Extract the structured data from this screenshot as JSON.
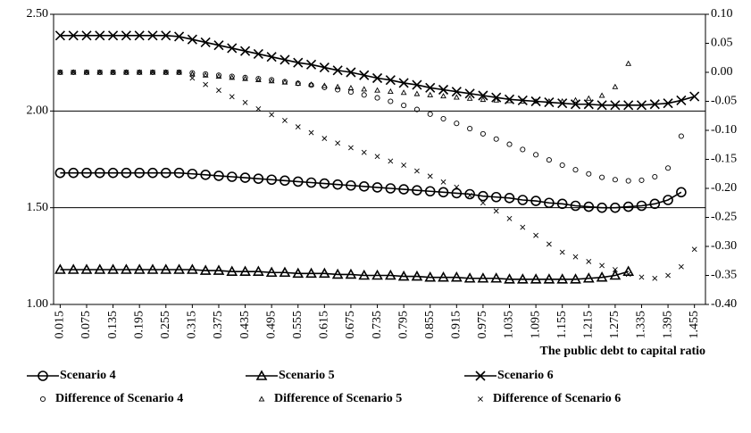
{
  "chart_data": {
    "type": "line",
    "x_label": "The public debt to capital ratio",
    "x": [
      0.015,
      0.045,
      0.075,
      0.105,
      0.135,
      0.165,
      0.195,
      0.225,
      0.255,
      0.285,
      0.315,
      0.345,
      0.375,
      0.405,
      0.435,
      0.465,
      0.495,
      0.525,
      0.555,
      0.585,
      0.615,
      0.645,
      0.675,
      0.705,
      0.735,
      0.765,
      0.795,
      0.825,
      0.855,
      0.885,
      0.915,
      0.945,
      0.975,
      1.005,
      1.035,
      1.065,
      1.095,
      1.125,
      1.155,
      1.185,
      1.215,
      1.245,
      1.275,
      1.305,
      1.335,
      1.365,
      1.395,
      1.425,
      1.455
    ],
    "xlim": [
      0,
      1.48
    ],
    "xticks": [
      0.015,
      0.075,
      0.135,
      0.195,
      0.255,
      0.315,
      0.375,
      0.435,
      0.495,
      0.555,
      0.615,
      0.675,
      0.735,
      0.795,
      0.855,
      0.915,
      0.975,
      1.035,
      1.095,
      1.155,
      1.215,
      1.275,
      1.335,
      1.395,
      1.455
    ],
    "ylim": [
      1,
      2.5
    ],
    "yticks": [
      {
        "value": 1,
        "label": "1.00"
      },
      {
        "value": 1.5,
        "label": "1.50"
      },
      {
        "value": 2,
        "label": "2.00"
      },
      {
        "value": 2.5,
        "label": "2.50"
      }
    ],
    "y2lim": [
      -0.4,
      0.1
    ],
    "y2ticks": [
      {
        "value": -0.4,
        "label": "-0.40"
      },
      {
        "value": -0.35,
        "label": "-0.35"
      },
      {
        "value": -0.3,
        "label": "-0.30"
      },
      {
        "value": -0.25,
        "label": "-0.25"
      },
      {
        "value": -0.2,
        "label": "-0.20"
      },
      {
        "value": -0.15,
        "label": "-0.15"
      },
      {
        "value": -0.1,
        "label": "-0.10"
      },
      {
        "value": -0.05,
        "label": "-0.05"
      },
      {
        "value": 0,
        "label": "0.00"
      },
      {
        "value": 0.05,
        "label": "0.05"
      },
      {
        "value": 0.1,
        "label": "0.10"
      }
    ],
    "grid": true,
    "legend": "bottom",
    "series": [
      {
        "name": "Scenario 4",
        "color": "#000000",
        "marker": "circle",
        "line": true,
        "values": [
          1.68,
          1.68,
          1.68,
          1.68,
          1.68,
          1.68,
          1.68,
          1.68,
          1.68,
          1.68,
          1.675,
          1.67,
          1.665,
          1.66,
          1.655,
          1.65,
          1.645,
          1.64,
          1.635,
          1.63,
          1.625,
          1.62,
          1.615,
          1.61,
          1.605,
          1.6,
          1.595,
          1.59,
          1.585,
          1.58,
          1.575,
          1.57,
          1.56,
          1.555,
          1.55,
          1.54,
          1.535,
          1.525,
          1.52,
          1.51,
          1.505,
          1.5,
          1.5,
          1.505,
          1.51,
          1.52,
          1.54,
          1.58,
          null
        ]
      },
      {
        "name": "Scenario 5",
        "color": "#000000",
        "marker": "triangle",
        "line": true,
        "values": [
          1.18,
          1.18,
          1.18,
          1.18,
          1.18,
          1.18,
          1.18,
          1.18,
          1.18,
          1.18,
          1.18,
          1.175,
          1.175,
          1.17,
          1.17,
          1.17,
          1.165,
          1.165,
          1.16,
          1.16,
          1.16,
          1.155,
          1.155,
          1.15,
          1.15,
          1.15,
          1.145,
          1.145,
          1.14,
          1.14,
          1.14,
          1.135,
          1.135,
          1.135,
          1.13,
          1.13,
          1.13,
          1.13,
          1.13,
          1.13,
          1.135,
          1.14,
          1.15,
          1.17,
          null,
          null,
          null,
          null,
          null
        ]
      },
      {
        "name": "Scenario 6",
        "color": "#000000",
        "marker": "x",
        "line": true,
        "values": [
          2.39,
          2.39,
          2.39,
          2.39,
          2.39,
          2.39,
          2.39,
          2.39,
          2.39,
          2.385,
          2.37,
          2.355,
          2.34,
          2.325,
          2.31,
          2.295,
          2.28,
          2.265,
          2.25,
          2.24,
          2.225,
          2.21,
          2.2,
          2.185,
          2.17,
          2.16,
          2.145,
          2.135,
          2.12,
          2.11,
          2.1,
          2.09,
          2.08,
          2.07,
          2.06,
          2.055,
          2.05,
          2.045,
          2.04,
          2.035,
          2.035,
          2.03,
          2.03,
          2.03,
          2.03,
          2.035,
          2.04,
          2.055,
          2.075
        ]
      },
      {
        "name": "Difference of Scenario 4",
        "color": "#000000",
        "marker": "circle",
        "line": false,
        "axis": "y2",
        "values": [
          0,
          0,
          0,
          0,
          0,
          0,
          0,
          0,
          0,
          0,
          -0.001,
          -0.003,
          -0.005,
          -0.007,
          -0.009,
          -0.011,
          -0.013,
          -0.016,
          -0.019,
          -0.022,
          -0.026,
          -0.03,
          -0.034,
          -0.039,
          -0.044,
          -0.05,
          -0.057,
          -0.064,
          -0.072,
          -0.08,
          -0.088,
          -0.097,
          -0.106,
          -0.115,
          -0.124,
          -0.133,
          -0.142,
          -0.151,
          -0.16,
          -0.168,
          -0.175,
          -0.181,
          -0.185,
          -0.187,
          -0.186,
          -0.18,
          -0.165,
          -0.11,
          null
        ]
      },
      {
        "name": "Difference of Scenario 5",
        "color": "#000000",
        "marker": "triangle",
        "line": false,
        "axis": "y2",
        "values": [
          0,
          0,
          0,
          0,
          0,
          0,
          0,
          0,
          0,
          0,
          -0.003,
          -0.005,
          -0.007,
          -0.009,
          -0.011,
          -0.013,
          -0.015,
          -0.017,
          -0.019,
          -0.021,
          -0.023,
          -0.025,
          -0.027,
          -0.029,
          -0.031,
          -0.033,
          -0.035,
          -0.037,
          -0.039,
          -0.041,
          -0.043,
          -0.045,
          -0.047,
          -0.048,
          -0.049,
          -0.05,
          -0.05,
          -0.05,
          -0.05,
          -0.048,
          -0.045,
          -0.04,
          -0.025,
          0.015,
          null,
          null,
          null,
          null,
          null
        ]
      },
      {
        "name": "Difference of Scenario 6",
        "color": "#000000",
        "marker": "x",
        "line": false,
        "axis": "y2",
        "values": [
          0,
          0,
          0,
          0,
          0,
          0,
          0,
          0,
          0,
          0,
          -0.01,
          -0.021,
          -0.031,
          -0.042,
          -0.052,
          -0.063,
          -0.073,
          -0.083,
          -0.094,
          -0.104,
          -0.114,
          -0.122,
          -0.13,
          -0.138,
          -0.145,
          -0.153,
          -0.16,
          -0.17,
          -0.179,
          -0.189,
          -0.198,
          -0.212,
          -0.225,
          -0.239,
          -0.252,
          -0.267,
          -0.281,
          -0.296,
          -0.31,
          -0.318,
          -0.326,
          -0.333,
          -0.34,
          -0.348,
          -0.353,
          -0.355,
          -0.35,
          -0.335,
          -0.305
        ]
      }
    ]
  }
}
